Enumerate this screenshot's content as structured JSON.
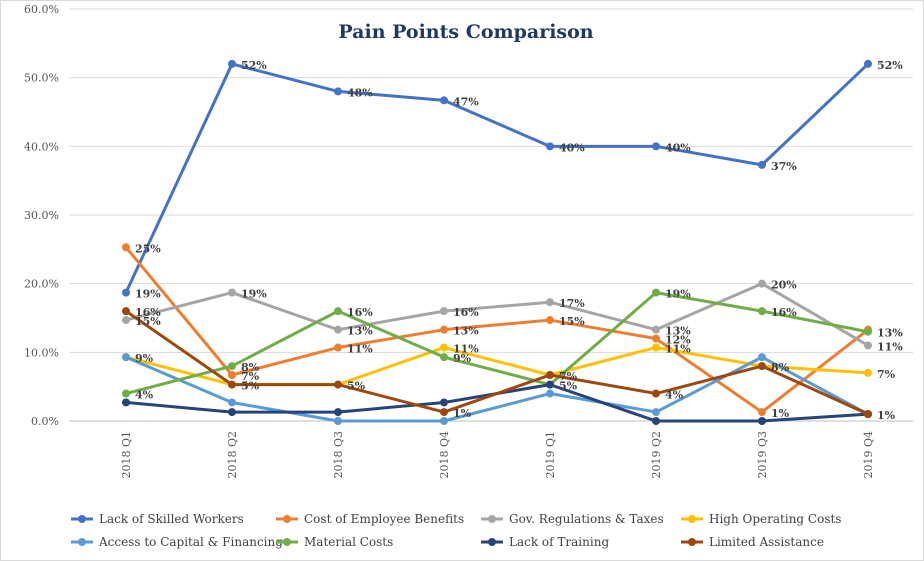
{
  "chart_data": {
    "type": "line",
    "title": "Pain Points Comparison",
    "xlabel": "",
    "ylabel": "",
    "ylim": [
      0,
      60
    ],
    "y_ticks": [
      "0.0%",
      "10.0%",
      "20.0%",
      "30.0%",
      "40.0%",
      "50.0%",
      "60.0%"
    ],
    "grid": true,
    "legend_position": "bottom",
    "categories": [
      "2018 Q1",
      "2018 Q2",
      "2018 Q3",
      "2018 Q4",
      "2019 Q1",
      "2019 Q2",
      "2019 Q3",
      "2019 Q4"
    ],
    "series": [
      {
        "name": "Lack of Skilled Workers",
        "color": "#4472c4",
        "values": [
          18.7,
          52,
          48,
          46.7,
          40,
          40,
          37.3,
          52
        ],
        "labels": [
          "19%",
          "52%",
          "48%",
          "47%",
          "40%",
          "40%",
          "37%",
          "52%"
        ]
      },
      {
        "name": "Cost of Employee Benefits",
        "color": "#ed7d31",
        "values": [
          25.3,
          6.7,
          10.7,
          13.3,
          14.7,
          12,
          1.3,
          13.3
        ],
        "labels": [
          "25%",
          "7%",
          "11%",
          "13%",
          "15%",
          "12%",
          "1%",
          ""
        ]
      },
      {
        "name": "Gov. Regulations & Taxes",
        "color": "#a5a5a5",
        "values": [
          14.7,
          18.7,
          13.3,
          16,
          17.3,
          13.3,
          20,
          11
        ],
        "labels": [
          "15%",
          "19%",
          "13%",
          "16%",
          "17%",
          "13%",
          "20%",
          "11%"
        ]
      },
      {
        "name": "High Operating Costs",
        "color": "#ffc000",
        "values": [
          9.3,
          5.3,
          5.3,
          10.7,
          6.7,
          10.7,
          8,
          7
        ],
        "labels": [
          "",
          "",
          "",
          "11%",
          "",
          "11%",
          "",
          "7%"
        ]
      },
      {
        "name": "Access to Capital & Financing",
        "color": "#5b9bd5",
        "values": [
          9.3,
          2.7,
          0,
          0,
          4,
          1.3,
          9.3,
          1
        ],
        "labels": [
          "9%",
          "",
          "",
          "",
          "",
          "",
          "",
          ""
        ]
      },
      {
        "name": "Material Costs",
        "color": "#70ad47",
        "values": [
          4,
          8,
          16,
          9.3,
          5.3,
          18.7,
          16,
          13
        ],
        "labels": [
          "4%",
          "8%",
          "16%",
          "9%",
          "",
          "19%",
          "16%",
          "13%"
        ]
      },
      {
        "name": "Lack of Training",
        "color": "#264478",
        "values": [
          2.7,
          1.3,
          1.3,
          2.7,
          5.3,
          0,
          0,
          1
        ],
        "labels": [
          "",
          "",
          "",
          "",
          "5%",
          "",
          "",
          ""
        ]
      },
      {
        "name": "Limited Assistance",
        "color": "#9e480e",
        "values": [
          16,
          5.3,
          5.3,
          1.3,
          6.7,
          4,
          8,
          1
        ],
        "labels": [
          "16%",
          "5%",
          "5%",
          "1%",
          "7%",
          "4%",
          "8%",
          "1%"
        ]
      }
    ]
  }
}
